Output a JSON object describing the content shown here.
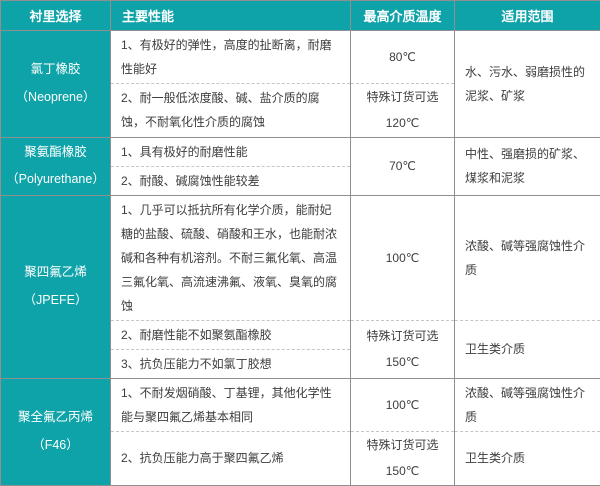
{
  "colors": {
    "header_bg": "#0ea3a8",
    "header_text": "#ffffff",
    "body_text": "#3d3d3d",
    "solid_border": "#8f8f8f",
    "dashed_border": "#c6c6c6"
  },
  "table": {
    "headers": [
      {
        "label": "衬里选择"
      },
      {
        "label": "主要性能"
      },
      {
        "label": "最高介质温度"
      },
      {
        "label": "适用范围"
      }
    ],
    "materials": [
      {
        "name": "氯丁橡胶",
        "alias": "（Neoprene）",
        "perfs": [
          "1、有极好的弹性，高度的扯断离，耐磨性能好",
          "2、耐一般低浓度酸、碱、盐介质的腐蚀，不耐氧化性介质的腐蚀"
        ],
        "temps": [
          "80℃",
          "特殊订货可选\n120℃"
        ],
        "ranges": [
          "水、污水、弱磨损性的泥浆、矿浆"
        ]
      },
      {
        "name": "聚氨酯橡胶",
        "alias": "（Polyurethane）",
        "perfs": [
          "1、具有极好的耐磨性能",
          "2、耐酸、碱腐蚀性能较差"
        ],
        "temps": [
          "70℃"
        ],
        "ranges": [
          "中性、强磨损的矿浆、煤浆和泥浆"
        ]
      },
      {
        "name": "聚四氟乙烯",
        "alias": "（JPEFE）",
        "perfs": [
          "1、几乎可以抵抗所有化学介质，能耐妃糖的盐酸、硫酸、硝酸和王水，也能耐浓碱和各种有机溶剂。不耐三氟化氧、高温三氟化氧、高流速沸氟、液氧、臭氧的腐蚀",
          "2、耐磨性能不如聚氨酯橡胶",
          "3、抗负压能力不如氯丁胶想"
        ],
        "temps": [
          "100℃",
          "特殊订货可选\n150℃"
        ],
        "ranges": [
          "浓酸、碱等强腐蚀性介质",
          "卫生类介质"
        ]
      },
      {
        "name": "聚全氟乙丙烯",
        "alias": "（F46）",
        "perfs": [
          "1、不耐发烟硝酸、丁基锂，其他化学性能与聚四氟乙烯基本相同",
          "2、抗负压能力高于聚四氟乙烯"
        ],
        "temps": [
          "100℃",
          "特殊订货可选\n150℃"
        ],
        "ranges": [
          "浓酸、碱等强腐蚀性介质",
          "卫生类介质"
        ]
      }
    ]
  }
}
